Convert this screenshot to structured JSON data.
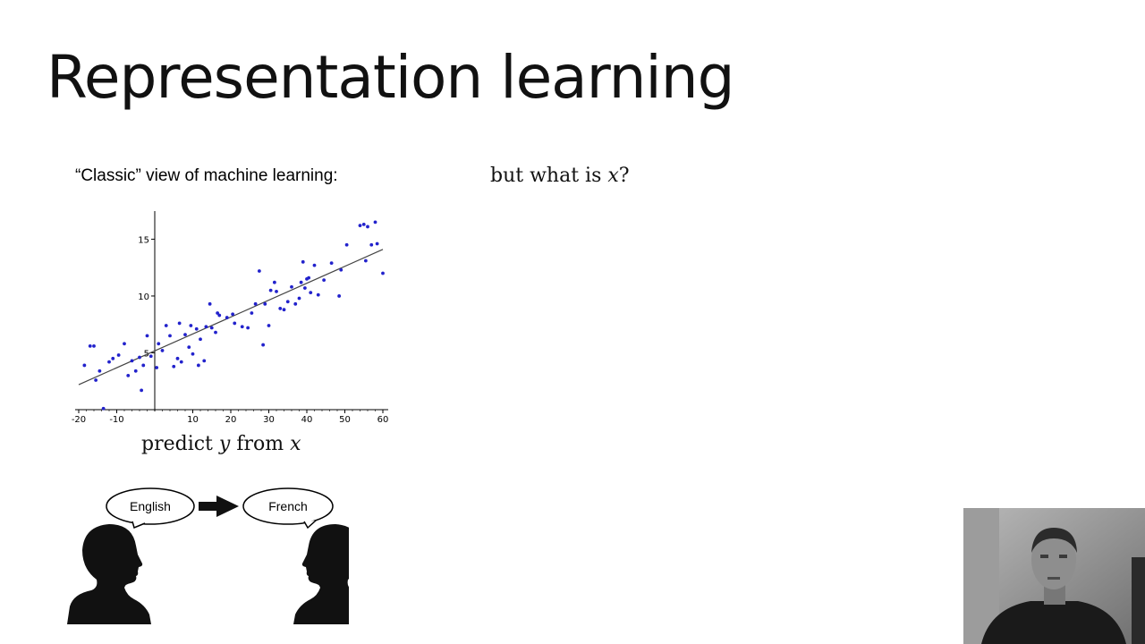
{
  "slide": {
    "title": "Representation learning",
    "classic_label": "“Classic” view of machine learning:",
    "question_prefix": "but what is ",
    "question_var": "x",
    "question_suffix": "?",
    "caption_prefix": "predict ",
    "caption_y": "y",
    "caption_mid": " from ",
    "caption_x": "x"
  },
  "translation": {
    "source_label": "English",
    "target_label": "French"
  },
  "colors": {
    "points": "#2222cc",
    "fit_line": "#444444",
    "silhouette": "#111111"
  },
  "chart_data": {
    "type": "scatter",
    "xlim": [
      -20,
      60
    ],
    "ylim": [
      0,
      17
    ],
    "x_ticks": [
      -20,
      -10,
      10,
      20,
      30,
      40,
      50,
      60
    ],
    "y_ticks": [
      5,
      10,
      15
    ],
    "grid": false,
    "fit_line": {
      "x": [
        -20,
        60
      ],
      "y": [
        2.2,
        14.1
      ]
    },
    "points": [
      [
        -18.5,
        3.9
      ],
      [
        -17,
        5.6
      ],
      [
        -16,
        5.6
      ],
      [
        -15.5,
        2.6
      ],
      [
        -14.5,
        3.4
      ],
      [
        -13.5,
        0.1
      ],
      [
        -12,
        4.2
      ],
      [
        -11,
        4.5
      ],
      [
        -9.5,
        4.8
      ],
      [
        -8,
        5.8
      ],
      [
        -7,
        3
      ],
      [
        -6,
        4.3
      ],
      [
        -5,
        3.4
      ],
      [
        -4,
        4.6
      ],
      [
        -3.5,
        1.7
      ],
      [
        -3,
        3.9
      ],
      [
        -2,
        6.5
      ],
      [
        -1,
        4.7
      ],
      [
        0.5,
        3.7
      ],
      [
        1,
        5.8
      ],
      [
        2,
        5.2
      ],
      [
        3,
        7.4
      ],
      [
        4,
        6.5
      ],
      [
        5,
        3.8
      ],
      [
        6,
        4.5
      ],
      [
        6.5,
        7.6
      ],
      [
        7,
        4.2
      ],
      [
        8,
        6.6
      ],
      [
        9,
        5.5
      ],
      [
        9.5,
        7.4
      ],
      [
        10,
        4.9
      ],
      [
        11,
        7.1
      ],
      [
        11.5,
        3.9
      ],
      [
        12,
        6.2
      ],
      [
        13,
        4.3
      ],
      [
        13.5,
        7.3
      ],
      [
        14.5,
        9.3
      ],
      [
        15,
        7.2
      ],
      [
        16,
        6.8
      ],
      [
        16.5,
        8.5
      ],
      [
        17,
        8.3
      ],
      [
        19,
        8.1
      ],
      [
        20.5,
        8.4
      ],
      [
        21,
        7.6
      ],
      [
        23,
        7.3
      ],
      [
        24.5,
        7.2
      ],
      [
        25.5,
        8.5
      ],
      [
        26.5,
        9.3
      ],
      [
        27.5,
        12.2
      ],
      [
        28.5,
        5.7
      ],
      [
        29,
        9.3
      ],
      [
        30,
        7.4
      ],
      [
        30.5,
        10.5
      ],
      [
        31.5,
        11.2
      ],
      [
        32,
        10.4
      ],
      [
        33,
        8.9
      ],
      [
        34,
        8.8
      ],
      [
        35,
        9.5
      ],
      [
        36,
        10.8
      ],
      [
        37,
        9.3
      ],
      [
        38,
        9.8
      ],
      [
        38.5,
        11.2
      ],
      [
        39,
        13
      ],
      [
        39.5,
        10.7
      ],
      [
        40,
        11.5
      ],
      [
        40.5,
        11.6
      ],
      [
        41,
        10.3
      ],
      [
        42,
        12.7
      ],
      [
        43,
        10.1
      ],
      [
        44.5,
        11.4
      ],
      [
        46.5,
        12.9
      ],
      [
        48.5,
        10
      ],
      [
        49,
        12.3
      ],
      [
        50.5,
        14.5
      ],
      [
        54,
        16.2
      ],
      [
        55,
        16.3
      ],
      [
        55.5,
        13.1
      ],
      [
        56,
        16.1
      ],
      [
        57,
        14.5
      ],
      [
        58,
        16.5
      ],
      [
        58.5,
        14.6
      ],
      [
        60,
        12
      ]
    ]
  }
}
